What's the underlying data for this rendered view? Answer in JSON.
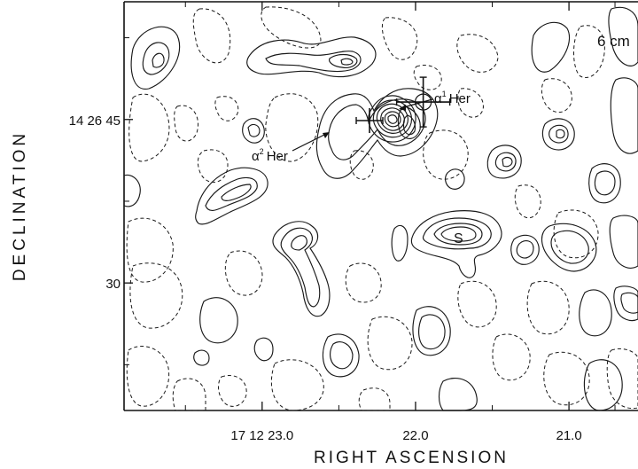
{
  "chart_data": {
    "type": "contour",
    "title": "",
    "band_label": "6 cm",
    "xlabel": "RIGHT ASCENSION",
    "ylabel": "DECLINATION",
    "x_ticks": [
      {
        "label": "17 12 23.0",
        "value": 23.0
      },
      {
        "label": "22.0",
        "value": 22.0
      },
      {
        "label": "21.0",
        "value": 21.0
      }
    ],
    "y_ticks": [
      {
        "label": "14 26 45",
        "value": 45
      },
      {
        "label": "30",
        "value": 30
      }
    ],
    "xlim": [
      23.9,
      20.55
    ],
    "ylim": [
      18.3,
      55.8
    ],
    "grid": false,
    "sources": [
      {
        "name": "α¹ Her",
        "label_main": "α",
        "label_sup": "1",
        "label_rest": "Her",
        "ra": 21.95,
        "dec": 46.6
      },
      {
        "name": "α² Her",
        "label_main": "α",
        "label_sup": "2",
        "label_rest": "Her",
        "ra": 22.3,
        "dec": 44.9
      },
      {
        "name": "S",
        "label_main": "S",
        "ra": 21.45,
        "dec": 33.5
      }
    ]
  },
  "colors": {
    "line": "#1a1a1a",
    "background": "#ffffff"
  }
}
